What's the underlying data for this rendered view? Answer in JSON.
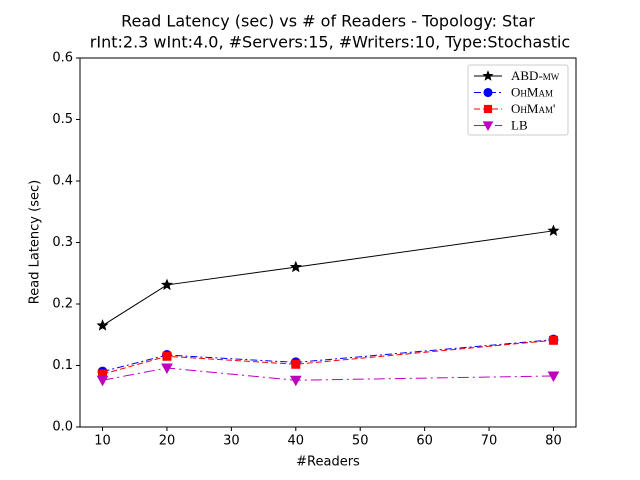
{
  "chart_data": {
    "type": "line",
    "title": "Read Latency (sec) vs # of Readers - Topology: Star",
    "subtitle": "rInt:2.3 wInt:4.0, #Servers:15, #Writers:10, Type:Stochastic",
    "x_label": "#Readers",
    "y_label": "Read Latency (sec)",
    "x": [
      10,
      20,
      40,
      80
    ],
    "series": [
      {
        "name": "ABD-mw",
        "color": "#000000",
        "marker": "star",
        "dash": "solid",
        "values": [
          0.165,
          0.231,
          0.26,
          0.319
        ]
      },
      {
        "name": "OhMam",
        "color": "#0000ff",
        "marker": "circle",
        "dash": "dashdot",
        "values": [
          0.09,
          0.117,
          0.105,
          0.142
        ]
      },
      {
        "name": "OhMam'",
        "color": "#ff0000",
        "marker": "square",
        "dash": "dashed",
        "values": [
          0.086,
          0.115,
          0.102,
          0.141
        ]
      },
      {
        "name": "LB",
        "color": "#bf00bf",
        "marker": "triangle-down",
        "dash": "longdashdot",
        "values": [
          0.076,
          0.096,
          0.076,
          0.083
        ]
      }
    ],
    "xlim": [
      6.5,
      83.5
    ],
    "xticks": [
      10,
      20,
      30,
      40,
      50,
      60,
      70,
      80
    ],
    "ylim": [
      0,
      0.6
    ],
    "yticks": [
      {
        "value": 0,
        "label": "0.0"
      },
      0.1,
      0.2,
      0.3,
      0.4,
      0.5,
      0.6
    ],
    "grid": false,
    "legend": "upper right"
  }
}
